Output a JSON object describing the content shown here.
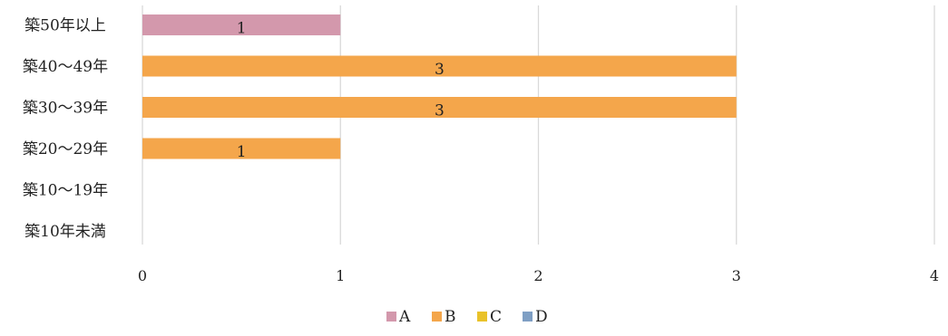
{
  "chart_data": {
    "type": "bar",
    "orientation": "horizontal",
    "stacked": true,
    "categories": [
      "築50年以上",
      "築40～49年",
      "築30～39年",
      "築20～29年",
      "築10～19年",
      "築10年未満"
    ],
    "series": [
      {
        "name": "A",
        "color": "#d398ac",
        "values": [
          1,
          0,
          0,
          0,
          0,
          0
        ]
      },
      {
        "name": "B",
        "color": "#f4a64b",
        "values": [
          0,
          3,
          3,
          1,
          0,
          0
        ]
      },
      {
        "name": "C",
        "color": "#e9c22a",
        "values": [
          0,
          0,
          0,
          0,
          0,
          0
        ]
      },
      {
        "name": "D",
        "color": "#7f9fc4",
        "values": [
          0,
          0,
          0,
          0,
          0,
          0
        ]
      }
    ],
    "xlim": [
      0,
      4
    ],
    "xticks": [
      0,
      1,
      2,
      3,
      4
    ],
    "grid": true,
    "legend_position": "bottom",
    "title": "",
    "xlabel": "",
    "ylabel": ""
  }
}
